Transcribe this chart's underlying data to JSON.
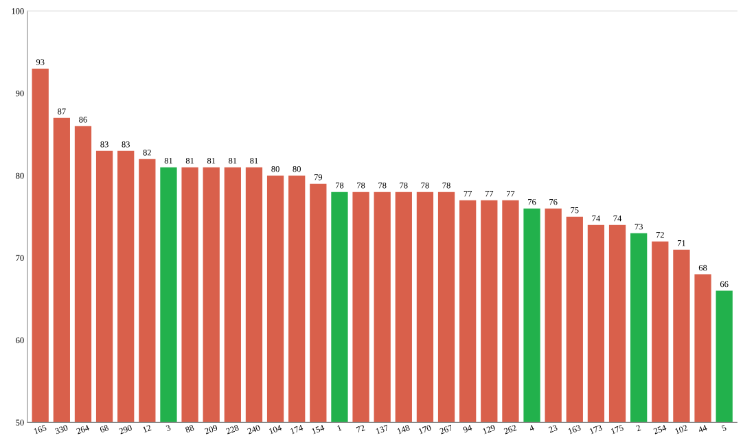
{
  "chart_data": {
    "type": "bar",
    "categories": [
      "165",
      "330",
      "264",
      "68",
      "290",
      "12",
      "3",
      "88",
      "209",
      "228",
      "240",
      "104",
      "174",
      "154",
      "1",
      "72",
      "137",
      "148",
      "170",
      "267",
      "94",
      "129",
      "262",
      "4",
      "23",
      "163",
      "173",
      "175",
      "2",
      "254",
      "102",
      "44",
      "5"
    ],
    "values": [
      93,
      87,
      86,
      83,
      83,
      82,
      81,
      81,
      81,
      81,
      81,
      80,
      80,
      79,
      78,
      78,
      78,
      78,
      78,
      78,
      77,
      77,
      77,
      76,
      76,
      75,
      74,
      74,
      73,
      72,
      71,
      68,
      66
    ],
    "colors": [
      "#d9604b",
      "#d9604b",
      "#d9604b",
      "#d9604b",
      "#d9604b",
      "#d9604b",
      "#22b14c",
      "#d9604b",
      "#d9604b",
      "#d9604b",
      "#d9604b",
      "#d9604b",
      "#d9604b",
      "#d9604b",
      "#22b14c",
      "#d9604b",
      "#d9604b",
      "#d9604b",
      "#d9604b",
      "#d9604b",
      "#d9604b",
      "#d9604b",
      "#d9604b",
      "#22b14c",
      "#d9604b",
      "#d9604b",
      "#d9604b",
      "#d9604b",
      "#22b14c",
      "#d9604b",
      "#d9604b",
      "#d9604b",
      "#22b14c"
    ],
    "ylim": [
      50,
      100
    ],
    "yticks": [
      50,
      60,
      70,
      80,
      90,
      100
    ],
    "data_labels": true,
    "grid": false,
    "legend": false
  }
}
